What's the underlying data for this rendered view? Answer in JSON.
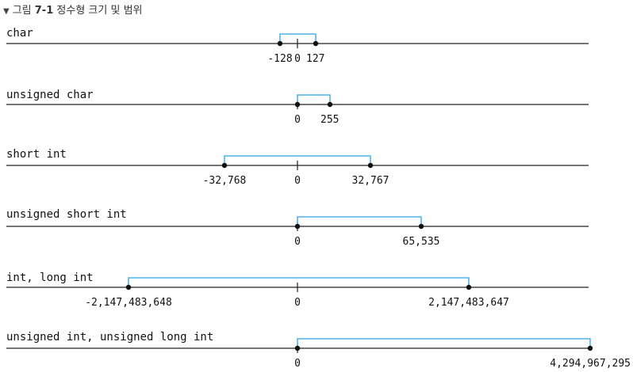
{
  "figure": {
    "caption_prefix": "그림",
    "caption_number": "7-1",
    "caption_title": "정수형 크기 및 범위"
  },
  "colors": {
    "bracket": "#4fb3e8",
    "axis": "#222222",
    "dot": "#111111"
  },
  "rows": [
    {
      "label": "char",
      "min_label": "-128",
      "zero_label": "0",
      "max_label": "127"
    },
    {
      "label": "unsigned char",
      "min_label": "",
      "zero_label": "0",
      "max_label": "255"
    },
    {
      "label": "short int",
      "min_label": "-32,768",
      "zero_label": "0",
      "max_label": "32,767"
    },
    {
      "label": "unsigned short int",
      "min_label": "",
      "zero_label": "0",
      "max_label": "65,535"
    },
    {
      "label": "int, long int",
      "min_label": "-2,147,483,648",
      "zero_label": "0",
      "max_label": "2,147,483,647"
    },
    {
      "label": "unsigned int, unsigned long int",
      "min_label": "",
      "zero_label": "0",
      "max_label": "4,294,967,295"
    }
  ]
}
